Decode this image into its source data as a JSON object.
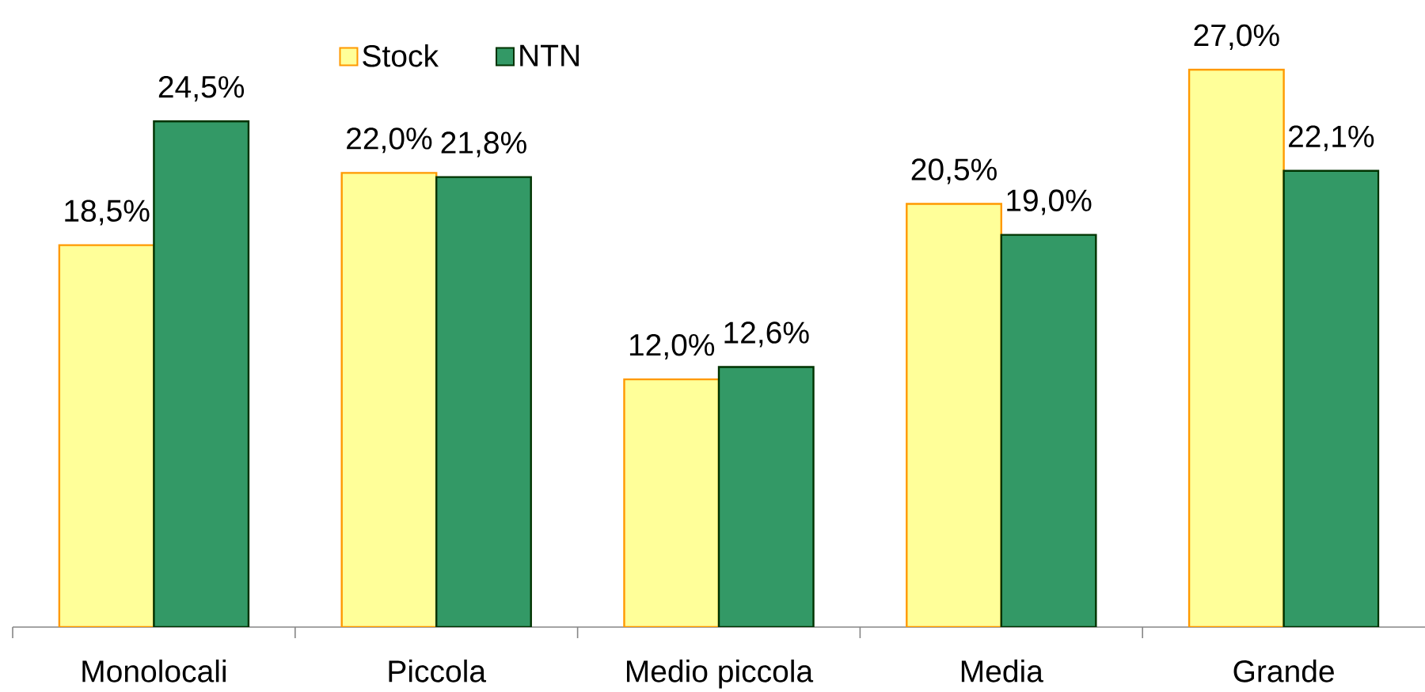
{
  "chart_data": {
    "type": "bar",
    "categories": [
      "Monolocali",
      "Piccola",
      "Medio piccola",
      "Media",
      "Grande"
    ],
    "series": [
      {
        "name": "Stock",
        "color": "#ffff99",
        "values": [
          18.5,
          22.0,
          12.0,
          20.5,
          27.0
        ],
        "value_labels": [
          "18,5%",
          "22,0%",
          "12,0%",
          "20,5%",
          "27,0%"
        ]
      },
      {
        "name": "NTN",
        "color": "#339966",
        "values": [
          24.5,
          21.8,
          12.6,
          19.0,
          22.1
        ],
        "value_labels": [
          "24,5%",
          "21,8%",
          "12,6%",
          "19,0%",
          "22,1%"
        ]
      }
    ],
    "legend": "top"
  }
}
